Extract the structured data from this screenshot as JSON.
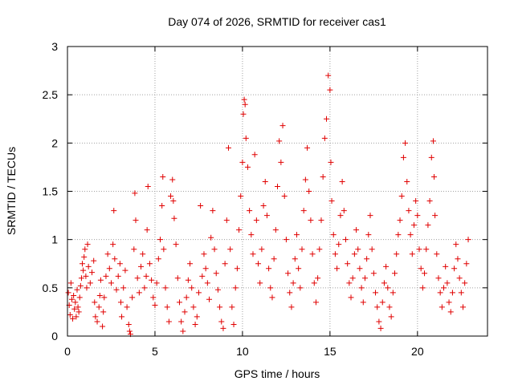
{
  "chart_data": {
    "type": "scatter",
    "title": "Day 074 of 2026, SRMTID for receiver cas1",
    "xlabel": "GPS time / hours",
    "ylabel": "SRMTID / TECUs",
    "xlim": [
      0,
      24
    ],
    "ylim": [
      0,
      3
    ],
    "xticks": [
      0,
      5,
      10,
      15,
      20
    ],
    "yticks": [
      0,
      0.5,
      1,
      1.5,
      2,
      2.5,
      3
    ],
    "xtick_labels": [
      "0",
      "5",
      "10",
      "15",
      "20"
    ],
    "ytick_labels": [
      "0",
      "0.5",
      "1",
      "1.5",
      "2",
      "2.5",
      "3"
    ],
    "grid": true,
    "marker": "plus",
    "color": "#e00000",
    "series": [
      {
        "name": "cas1",
        "points": [
          [
            0.05,
            0.45
          ],
          [
            0.1,
            0.32
          ],
          [
            0.15,
            0.22
          ],
          [
            0.2,
            0.55
          ],
          [
            0.25,
            0.38
          ],
          [
            0.3,
            0.18
          ],
          [
            0.35,
            0.42
          ],
          [
            0.4,
            0.28
          ],
          [
            0.45,
            0.35
          ],
          [
            0.5,
            0.2
          ],
          [
            0.55,
            0.48
          ],
          [
            0.6,
            0.3
          ],
          [
            0.65,
            0.25
          ],
          [
            0.7,
            0.4
          ],
          [
            0.75,
            0.52
          ],
          [
            0.8,
            0.6
          ],
          [
            0.85,
            0.75
          ],
          [
            0.9,
            0.68
          ],
          [
            0.95,
            0.82
          ],
          [
            1.0,
            0.9
          ],
          [
            1.05,
            0.62
          ],
          [
            1.1,
            0.5
          ],
          [
            1.15,
            0.95
          ],
          [
            1.2,
            0.72
          ],
          [
            1.3,
            0.55
          ],
          [
            1.4,
            0.66
          ],
          [
            1.5,
            0.78
          ],
          [
            1.55,
            0.35
          ],
          [
            1.6,
            0.2
          ],
          [
            1.7,
            0.15
          ],
          [
            1.8,
            0.3
          ],
          [
            1.85,
            0.42
          ],
          [
            1.9,
            0.58
          ],
          [
            2.0,
            0.1
          ],
          [
            2.05,
            0.25
          ],
          [
            2.1,
            0.4
          ],
          [
            2.2,
            0.62
          ],
          [
            2.3,
            0.85
          ],
          [
            2.4,
            0.7
          ],
          [
            2.5,
            0.55
          ],
          [
            2.6,
            0.95
          ],
          [
            2.65,
            1.3
          ],
          [
            2.7,
            0.8
          ],
          [
            2.8,
            0.48
          ],
          [
            2.9,
            0.62
          ],
          [
            3.0,
            0.75
          ],
          [
            3.05,
            0.35
          ],
          [
            3.1,
            0.2
          ],
          [
            3.2,
            0.5
          ],
          [
            3.3,
            0.68
          ],
          [
            3.4,
            0.3
          ],
          [
            3.5,
            0.12
          ],
          [
            3.55,
            0.05
          ],
          [
            3.6,
            0.02
          ],
          [
            3.7,
            0.4
          ],
          [
            3.8,
            0.9
          ],
          [
            3.85,
            1.48
          ],
          [
            3.9,
            1.2
          ],
          [
            4.0,
            0.6
          ],
          [
            4.1,
            0.45
          ],
          [
            4.2,
            0.72
          ],
          [
            4.3,
            0.85
          ],
          [
            4.4,
            0.5
          ],
          [
            4.5,
            0.62
          ],
          [
            4.55,
            1.1
          ],
          [
            4.6,
            1.55
          ],
          [
            4.7,
            0.75
          ],
          [
            4.8,
            0.58
          ],
          [
            4.9,
            0.4
          ],
          [
            5.0,
            0.32
          ],
          [
            5.1,
            0.55
          ],
          [
            5.2,
            0.8
          ],
          [
            5.3,
            1.0
          ],
          [
            5.4,
            1.35
          ],
          [
            5.45,
            1.65
          ],
          [
            5.5,
            0.9
          ],
          [
            5.6,
            0.5
          ],
          [
            5.7,
            0.3
          ],
          [
            5.8,
            0.15
          ],
          [
            5.9,
            1.45
          ],
          [
            6.0,
            1.62
          ],
          [
            6.05,
            1.4
          ],
          [
            6.1,
            1.22
          ],
          [
            6.2,
            0.95
          ],
          [
            6.3,
            0.6
          ],
          [
            6.4,
            0.35
          ],
          [
            6.5,
            0.15
          ],
          [
            6.6,
            0.05
          ],
          [
            6.7,
            0.25
          ],
          [
            6.8,
            0.4
          ],
          [
            6.9,
            0.58
          ],
          [
            7.0,
            0.75
          ],
          [
            7.1,
            0.5
          ],
          [
            7.2,
            0.3
          ],
          [
            7.3,
            0.12
          ],
          [
            7.4,
            0.2
          ],
          [
            7.5,
            0.45
          ],
          [
            7.6,
            1.35
          ],
          [
            7.7,
            0.62
          ],
          [
            7.8,
            0.85
          ],
          [
            7.9,
            0.7
          ],
          [
            8.0,
            0.55
          ],
          [
            8.1,
            0.38
          ],
          [
            8.2,
            1.02
          ],
          [
            8.3,
            1.3
          ],
          [
            8.4,
            0.9
          ],
          [
            8.5,
            0.65
          ],
          [
            8.6,
            0.48
          ],
          [
            8.7,
            0.3
          ],
          [
            8.8,
            0.15
          ],
          [
            8.9,
            0.08
          ],
          [
            9.0,
            0.75
          ],
          [
            9.1,
            1.2
          ],
          [
            9.2,
            1.95
          ],
          [
            9.3,
            0.9
          ],
          [
            9.4,
            0.3
          ],
          [
            9.5,
            0.12
          ],
          [
            9.6,
            0.5
          ],
          [
            9.7,
            0.7
          ],
          [
            9.8,
            1.1
          ],
          [
            9.9,
            1.45
          ],
          [
            10.0,
            1.8
          ],
          [
            10.05,
            2.3
          ],
          [
            10.1,
            2.45
          ],
          [
            10.15,
            2.4
          ],
          [
            10.2,
            2.05
          ],
          [
            10.3,
            1.75
          ],
          [
            10.4,
            1.3
          ],
          [
            10.5,
            1.05
          ],
          [
            10.6,
            0.85
          ],
          [
            10.7,
            1.88
          ],
          [
            10.8,
            1.2
          ],
          [
            10.9,
            0.75
          ],
          [
            11.0,
            0.55
          ],
          [
            11.1,
            0.9
          ],
          [
            11.2,
            1.35
          ],
          [
            11.3,
            1.6
          ],
          [
            11.4,
            1.25
          ],
          [
            11.5,
            0.7
          ],
          [
            11.6,
            0.5
          ],
          [
            11.7,
            0.4
          ],
          [
            11.8,
            0.8
          ],
          [
            11.9,
            1.1
          ],
          [
            12.0,
            1.55
          ],
          [
            12.1,
            2.02
          ],
          [
            12.2,
            1.8
          ],
          [
            12.3,
            2.18
          ],
          [
            12.4,
            1.45
          ],
          [
            12.5,
            1.0
          ],
          [
            12.6,
            0.65
          ],
          [
            12.7,
            0.45
          ],
          [
            12.8,
            0.3
          ],
          [
            12.9,
            0.55
          ],
          [
            13.0,
            0.8
          ],
          [
            13.1,
            1.05
          ],
          [
            13.2,
            0.7
          ],
          [
            13.3,
            0.5
          ],
          [
            13.4,
            0.9
          ],
          [
            13.5,
            1.3
          ],
          [
            13.6,
            1.62
          ],
          [
            13.7,
            1.95
          ],
          [
            13.8,
            1.5
          ],
          [
            13.9,
            1.2
          ],
          [
            14.0,
            0.85
          ],
          [
            14.1,
            0.55
          ],
          [
            14.2,
            0.35
          ],
          [
            14.3,
            0.6
          ],
          [
            14.4,
            0.9
          ],
          [
            14.5,
            1.2
          ],
          [
            14.6,
            1.65
          ],
          [
            14.7,
            2.05
          ],
          [
            14.8,
            2.25
          ],
          [
            14.9,
            2.7
          ],
          [
            15.0,
            2.55
          ],
          [
            15.05,
            1.8
          ],
          [
            15.1,
            1.4
          ],
          [
            15.2,
            1.05
          ],
          [
            15.3,
            0.85
          ],
          [
            15.4,
            0.7
          ],
          [
            15.5,
            0.95
          ],
          [
            15.6,
            1.25
          ],
          [
            15.7,
            1.6
          ],
          [
            15.8,
            1.3
          ],
          [
            15.9,
            1.0
          ],
          [
            16.0,
            0.75
          ],
          [
            16.1,
            0.55
          ],
          [
            16.2,
            0.4
          ],
          [
            16.3,
            0.6
          ],
          [
            16.4,
            0.85
          ],
          [
            16.5,
            1.1
          ],
          [
            16.6,
            0.9
          ],
          [
            16.7,
            0.7
          ],
          [
            16.8,
            0.5
          ],
          [
            16.9,
            0.35
          ],
          [
            17.0,
            0.6
          ],
          [
            17.1,
            0.8
          ],
          [
            17.2,
            1.05
          ],
          [
            17.3,
            1.25
          ],
          [
            17.4,
            0.9
          ],
          [
            17.5,
            0.65
          ],
          [
            17.6,
            0.45
          ],
          [
            17.7,
            0.3
          ],
          [
            17.8,
            0.15
          ],
          [
            17.9,
            0.08
          ],
          [
            18.0,
            0.35
          ],
          [
            18.1,
            0.55
          ],
          [
            18.2,
            0.72
          ],
          [
            18.3,
            0.5
          ],
          [
            18.4,
            0.3
          ],
          [
            18.5,
            0.2
          ],
          [
            18.6,
            0.45
          ],
          [
            18.7,
            0.65
          ],
          [
            18.8,
            0.85
          ],
          [
            18.9,
            1.05
          ],
          [
            19.0,
            1.2
          ],
          [
            19.1,
            1.45
          ],
          [
            19.2,
            1.85
          ],
          [
            19.3,
            2.0
          ],
          [
            19.4,
            1.6
          ],
          [
            19.5,
            1.3
          ],
          [
            19.6,
            1.05
          ],
          [
            19.7,
            0.85
          ],
          [
            19.8,
            1.15
          ],
          [
            19.9,
            1.4
          ],
          [
            20.0,
            1.25
          ],
          [
            20.1,
            0.9
          ],
          [
            20.2,
            0.7
          ],
          [
            20.3,
            0.5
          ],
          [
            20.4,
            0.65
          ],
          [
            20.5,
            0.9
          ],
          [
            20.6,
            1.15
          ],
          [
            20.7,
            1.4
          ],
          [
            20.8,
            1.85
          ],
          [
            20.9,
            2.02
          ],
          [
            20.95,
            1.65
          ],
          [
            21.0,
            1.25
          ],
          [
            21.1,
            0.85
          ],
          [
            21.2,
            0.6
          ],
          [
            21.3,
            0.45
          ],
          [
            21.4,
            0.3
          ],
          [
            21.5,
            0.5
          ],
          [
            21.6,
            0.72
          ],
          [
            21.7,
            0.55
          ],
          [
            21.8,
            0.35
          ],
          [
            21.9,
            0.25
          ],
          [
            22.0,
            0.45
          ],
          [
            22.1,
            0.7
          ],
          [
            22.2,
            0.95
          ],
          [
            22.3,
            0.8
          ],
          [
            22.4,
            0.6
          ],
          [
            22.5,
            0.45
          ],
          [
            22.6,
            0.3
          ],
          [
            22.7,
            0.55
          ],
          [
            22.8,
            0.75
          ],
          [
            22.9,
            1.0
          ]
        ]
      }
    ]
  }
}
